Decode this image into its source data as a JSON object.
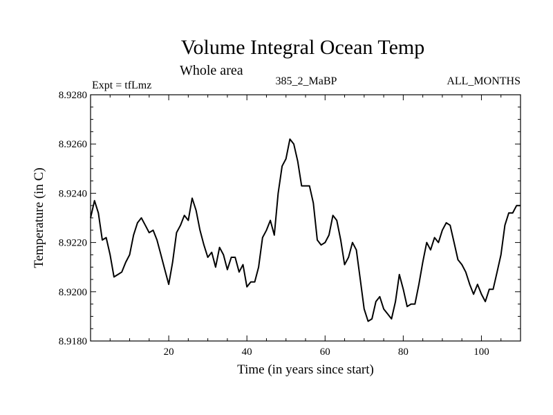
{
  "chart_data": {
    "type": "line",
    "title": "Volume Integral Ocean Temp",
    "subtitle": "Whole area",
    "annotations": {
      "left": "Expt = tfLmz",
      "center": "385_2_MaBP",
      "right": "ALL_MONTHS"
    },
    "xlabel": "Time (in years since start)",
    "ylabel": "Temperature (in C)",
    "xlim": [
      0,
      110
    ],
    "ylim": [
      8.918,
      8.928
    ],
    "xticks": [
      20,
      40,
      60,
      80,
      100
    ],
    "xtick_labels": [
      "20",
      "40",
      "60",
      "80",
      "100"
    ],
    "yticks": [
      8.918,
      8.92,
      8.922,
      8.924,
      8.926,
      8.928
    ],
    "ytick_labels": [
      "8.9180",
      "8.9200",
      "8.9220",
      "8.9240",
      "8.9260",
      "8.9280"
    ],
    "grid": false,
    "series": [
      {
        "name": "Volume Integral Ocean Temp",
        "color": "#000000",
        "x": [
          0,
          1,
          2,
          3,
          4,
          5,
          6,
          7,
          8,
          9,
          10,
          11,
          12,
          13,
          14,
          15,
          16,
          17,
          18,
          19,
          20,
          21,
          22,
          23,
          24,
          25,
          26,
          27,
          28,
          29,
          30,
          31,
          32,
          33,
          34,
          35,
          36,
          37,
          38,
          39,
          40,
          41,
          42,
          43,
          44,
          45,
          46,
          47,
          48,
          49,
          50,
          51,
          52,
          53,
          54,
          55,
          56,
          57,
          58,
          59,
          60,
          61,
          62,
          63,
          64,
          65,
          66,
          67,
          68,
          69,
          70,
          71,
          72,
          73,
          74,
          75,
          76,
          77,
          78,
          79,
          80,
          81,
          82,
          83,
          84,
          85,
          86,
          87,
          88,
          89,
          90,
          91,
          92,
          93,
          94,
          95,
          96,
          97,
          98,
          99,
          100,
          101,
          102,
          103,
          104,
          105,
          106,
          107,
          108,
          109,
          110
        ],
        "values": [
          8.923,
          8.9237,
          8.9232,
          8.9221,
          8.9222,
          8.9215,
          8.9206,
          8.9207,
          8.9208,
          8.9212,
          8.9215,
          8.9223,
          8.9228,
          8.923,
          8.9227,
          8.9224,
          8.9225,
          8.9221,
          8.9215,
          8.9209,
          8.9203,
          8.9212,
          8.9224,
          8.9227,
          8.9231,
          8.9229,
          8.9238,
          8.9233,
          8.9225,
          8.9219,
          8.9214,
          8.9216,
          8.921,
          8.9218,
          8.9215,
          8.9209,
          8.9214,
          8.9214,
          8.9208,
          8.9211,
          8.9202,
          8.9204,
          8.9204,
          8.921,
          8.9222,
          8.9225,
          8.9229,
          8.9223,
          8.924,
          8.9251,
          8.9254,
          8.9262,
          8.926,
          8.9253,
          8.9243,
          8.9243,
          8.9243,
          8.9236,
          8.9221,
          8.9219,
          8.922,
          8.9223,
          8.9231,
          8.9229,
          8.9221,
          8.9211,
          8.9214,
          8.922,
          8.9217,
          8.9205,
          8.9193,
          8.9188,
          8.9189,
          8.9196,
          8.9198,
          8.9193,
          8.9191,
          8.9189,
          8.9196,
          8.9207,
          8.9201,
          8.9194,
          8.9195,
          8.9195,
          8.9203,
          8.9212,
          8.922,
          8.9217,
          8.9222,
          8.922,
          8.9225,
          8.9228,
          8.9227,
          8.922,
          8.9213,
          8.9211,
          8.9208,
          8.9203,
          8.9199,
          8.9203,
          8.9199,
          8.9196,
          8.9201,
          8.9201,
          8.9208,
          8.9215,
          8.9227,
          8.9232,
          8.9232,
          8.9235,
          8.9235
        ]
      }
    ]
  }
}
